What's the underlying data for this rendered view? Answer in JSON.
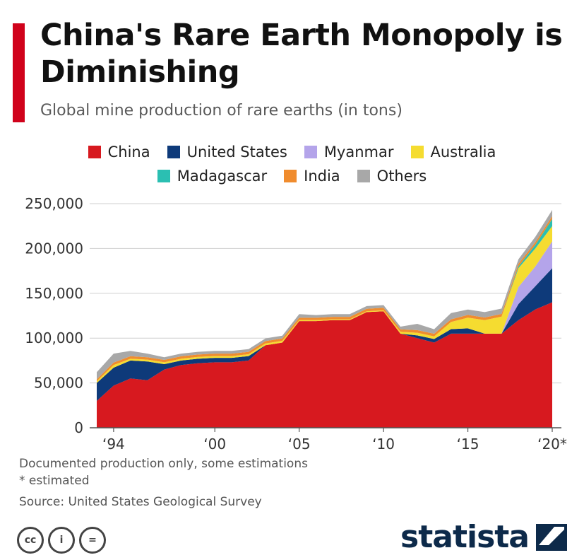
{
  "header": {
    "title": "China's Rare Earth Monopoly is Diminishing",
    "subtitle": "Global mine production of rare earths (in tons)",
    "accent_color": "#d0021b"
  },
  "legend": [
    {
      "label": "China",
      "color": "#d7191f"
    },
    {
      "label": "United States",
      "color": "#0e3a7a"
    },
    {
      "label": "Myanmar",
      "color": "#b4a4ea"
    },
    {
      "label": "Australia",
      "color": "#f5dc30"
    },
    {
      "label": "Madagascar",
      "color": "#2bbfb2"
    },
    {
      "label": "India",
      "color": "#f08c2e"
    },
    {
      "label": "Others",
      "color": "#a8a8a8"
    }
  ],
  "chart_data": {
    "type": "area",
    "stacked": true,
    "x": [
      1993,
      1994,
      1995,
      1996,
      1997,
      1998,
      1999,
      2000,
      2001,
      2002,
      2003,
      2004,
      2005,
      2006,
      2007,
      2008,
      2009,
      2010,
      2011,
      2012,
      2013,
      2014,
      2015,
      2016,
      2017,
      2018,
      2019,
      2020
    ],
    "x_tick_values": [
      1994,
      2000,
      2005,
      2010,
      2015,
      2020
    ],
    "x_tick_labels": [
      "‘94",
      "‘00",
      "‘05",
      "‘10",
      "‘15",
      "‘20*"
    ],
    "ylim": [
      0,
      250000
    ],
    "y_ticks": [
      0,
      50000,
      100000,
      150000,
      200000,
      250000
    ],
    "y_tick_labels": [
      "0",
      "50,000",
      "100,000",
      "150,000",
      "200,000",
      "250,000"
    ],
    "grid": true,
    "legend_position": "top",
    "series": [
      {
        "name": "China",
        "color": "#d7191f",
        "values": [
          30000,
          47000,
          55000,
          53000,
          65000,
          70000,
          72000,
          73000,
          73000,
          75000,
          92000,
          95000,
          119000,
          119000,
          120000,
          120000,
          129000,
          130000,
          105000,
          100000,
          95000,
          105000,
          105000,
          105000,
          105000,
          120000,
          132000,
          140000
        ]
      },
      {
        "name": "United States",
        "color": "#0e3a7a",
        "values": [
          20000,
          20000,
          20000,
          21000,
          6000,
          5000,
          5000,
          5000,
          5000,
          5000,
          0,
          0,
          0,
          0,
          0,
          0,
          0,
          0,
          0,
          3000,
          4000,
          5000,
          5900,
          0,
          0,
          18000,
          26000,
          38000
        ]
      },
      {
        "name": "Myanmar",
        "color": "#b4a4ea",
        "values": [
          0,
          0,
          0,
          0,
          0,
          0,
          0,
          0,
          0,
          0,
          0,
          0,
          0,
          0,
          0,
          0,
          0,
          0,
          0,
          0,
          0,
          0,
          0,
          0,
          0,
          19000,
          22000,
          30000
        ]
      },
      {
        "name": "Australia",
        "color": "#f5dc30",
        "values": [
          2000,
          3000,
          2000,
          2000,
          2000,
          2000,
          2000,
          2000,
          2000,
          2000,
          2000,
          2000,
          1000,
          1000,
          1000,
          1000,
          1000,
          1000,
          2000,
          3000,
          3000,
          8000,
          12000,
          15000,
          19000,
          21000,
          20000,
          17000
        ]
      },
      {
        "name": "Madagascar",
        "color": "#2bbfb2",
        "values": [
          0,
          0,
          0,
          0,
          0,
          0,
          0,
          0,
          0,
          0,
          0,
          0,
          0,
          0,
          0,
          0,
          0,
          0,
          0,
          0,
          0,
          0,
          0,
          0,
          0,
          2000,
          4000,
          8000
        ]
      },
      {
        "name": "India",
        "color": "#f08c2e",
        "values": [
          2000,
          2700,
          2800,
          2700,
          2700,
          2700,
          2700,
          2700,
          2700,
          2700,
          2700,
          2700,
          2700,
          2700,
          2700,
          2700,
          2700,
          2800,
          2800,
          2900,
          2900,
          3000,
          3000,
          3000,
          3000,
          3000,
          3000,
          3000
        ]
      },
      {
        "name": "Others",
        "color": "#a8a8a8",
        "values": [
          8000,
          10000,
          6000,
          4000,
          3000,
          3000,
          3000,
          3000,
          3000,
          3000,
          3000,
          3000,
          4000,
          3000,
          3000,
          3000,
          3000,
          3000,
          3000,
          7000,
          5000,
          7000,
          6000,
          6000,
          6000,
          5000,
          6000,
          7000
        ]
      }
    ]
  },
  "footer": {
    "note1": "Documented production only, some estimations",
    "note2": "* estimated",
    "source": "Source: United States Geological Survey",
    "cc_labels": [
      "cc",
      "i",
      "="
    ],
    "brand": "statista"
  }
}
